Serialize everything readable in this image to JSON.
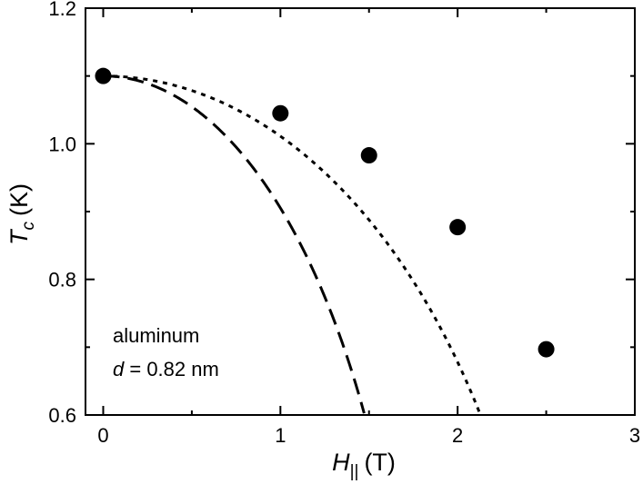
{
  "chart_data": {
    "type": "scatter",
    "title": "",
    "xlabel": {
      "symbol": "H",
      "subscript": "||",
      "unit": "(T)"
    },
    "ylabel": {
      "symbol": "T",
      "subscript": "c",
      "unit": "(K)"
    },
    "xlim": [
      -0.1,
      3.0
    ],
    "ylim": [
      0.6,
      1.2
    ],
    "xticks": [
      0,
      1,
      2,
      3
    ],
    "xtick_labels": [
      "0",
      "1",
      "2",
      "3"
    ],
    "yticks": [
      0.6,
      0.8,
      1.0,
      1.2
    ],
    "ytick_labels": [
      "0.6",
      "0.8",
      "1.0",
      "1.2"
    ],
    "grid": false,
    "legend": false,
    "series": [
      {
        "kind": "points",
        "marker": "filled-circle",
        "color": "#000000",
        "x": [
          0,
          1.0,
          1.5,
          2.0,
          2.5
        ],
        "y": [
          1.1,
          1.045,
          0.983,
          0.877,
          0.697
        ]
      },
      {
        "kind": "curve",
        "style": "long-dash",
        "color": "#000000",
        "Tc0": 1.1,
        "Hc": 1.76
      },
      {
        "kind": "curve",
        "style": "short-dash",
        "color": "#000000",
        "Tc0": 1.1,
        "Hc": 2.54
      }
    ],
    "annotations": {
      "material": "aluminum",
      "thickness_symbol": "d",
      "thickness_value": " = 0.82 nm"
    }
  }
}
